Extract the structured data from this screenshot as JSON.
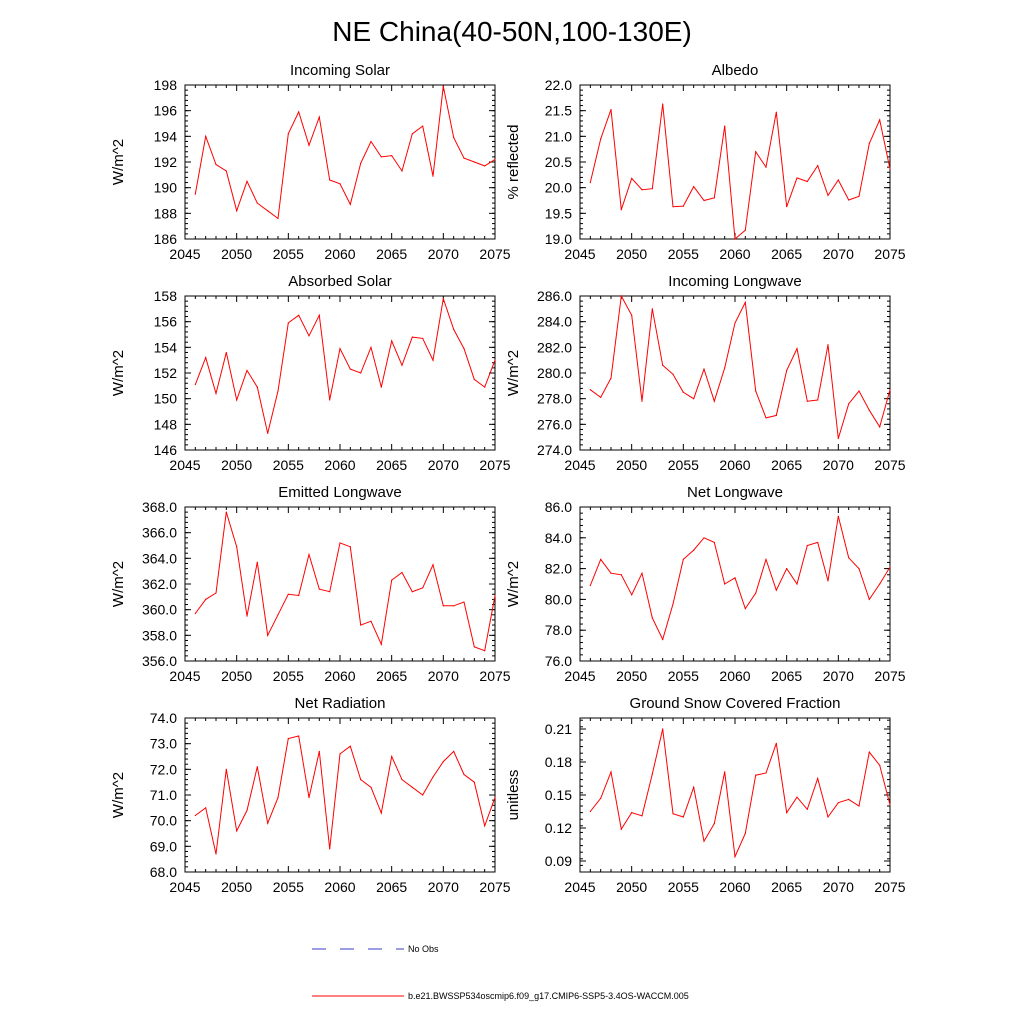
{
  "title": "NE China(40-50N,100-130E)",
  "legend": [
    {
      "label": "No Obs",
      "color": "#3b3bc8",
      "dash": true
    },
    {
      "label": "b.e21.BWSSP534oscmip6.f09_g17.CMIP6-SSP5-3.4OS-WACCM.005",
      "color": "#ff0000",
      "dash": false
    }
  ],
  "chart_data": [
    {
      "type": "line",
      "title": "Incoming Solar",
      "ylabel": "W/m^2",
      "xlim": [
        2045,
        2075
      ],
      "ylim": [
        186,
        198
      ],
      "xticks": [
        2045,
        2050,
        2055,
        2060,
        2065,
        2070,
        2075
      ],
      "yticks": [
        "186",
        "188",
        "190",
        "192",
        "194",
        "196",
        "198"
      ],
      "x": [
        2046,
        2047,
        2048,
        2049,
        2050,
        2051,
        2052,
        2053,
        2054,
        2055,
        2056,
        2057,
        2058,
        2059,
        2060,
        2061,
        2062,
        2063,
        2064,
        2065,
        2066,
        2067,
        2068,
        2069,
        2070,
        2071,
        2072,
        2073,
        2074,
        2075
      ],
      "series": [
        {
          "name": "b.e21.BWSSP534oscmip6.f09_g17.CMIP6-SSP5-3.4OS-WACCM.005",
          "color": "#ff0000",
          "values": [
            189.5,
            194.0,
            191.8,
            191.3,
            188.2,
            190.5,
            188.8,
            188.2,
            187.6,
            194.2,
            195.9,
            193.3,
            195.5,
            190.6,
            190.3,
            188.7,
            191.9,
            193.6,
            192.4,
            192.5,
            191.3,
            194.2,
            194.8,
            190.9,
            197.9,
            193.9,
            192.3,
            192.0,
            191.7,
            192.2
          ]
        }
      ]
    },
    {
      "type": "line",
      "title": "Albedo",
      "ylabel": "% reflected",
      "xlim": [
        2045,
        2075
      ],
      "ylim": [
        19.0,
        22.0
      ],
      "xticks": [
        2045,
        2050,
        2055,
        2060,
        2065,
        2070,
        2075
      ],
      "yticks": [
        "19.0",
        "19.5",
        "20.0",
        "20.5",
        "21.0",
        "21.5",
        "22.0"
      ],
      "x": [
        2046,
        2047,
        2048,
        2049,
        2050,
        2051,
        2052,
        2053,
        2054,
        2055,
        2056,
        2057,
        2058,
        2059,
        2060,
        2061,
        2062,
        2063,
        2064,
        2065,
        2066,
        2067,
        2068,
        2069,
        2070,
        2071,
        2072,
        2073,
        2074,
        2075
      ],
      "series": [
        {
          "name": "b.e21.BWSSP534oscmip6.f09_g17.CMIP6-SSP5-3.4OS-WACCM.005",
          "color": "#ff0000",
          "values": [
            20.1,
            20.95,
            21.52,
            19.57,
            20.18,
            19.96,
            19.98,
            21.63,
            19.63,
            19.64,
            20.02,
            19.75,
            19.8,
            21.2,
            19.0,
            19.17,
            20.7,
            20.4,
            21.47,
            19.63,
            20.19,
            20.12,
            20.43,
            19.85,
            20.15,
            19.76,
            19.83,
            20.86,
            21.32,
            20.36
          ]
        }
      ]
    },
    {
      "type": "line",
      "title": "Absorbed Solar",
      "ylabel": "W/m^2",
      "xlim": [
        2045,
        2075
      ],
      "ylim": [
        146,
        158
      ],
      "xticks": [
        2045,
        2050,
        2055,
        2060,
        2065,
        2070,
        2075
      ],
      "yticks": [
        "146",
        "148",
        "150",
        "152",
        "154",
        "156",
        "158"
      ],
      "x": [
        2046,
        2047,
        2048,
        2049,
        2050,
        2051,
        2052,
        2053,
        2054,
        2055,
        2056,
        2057,
        2058,
        2059,
        2060,
        2061,
        2062,
        2063,
        2064,
        2065,
        2066,
        2067,
        2068,
        2069,
        2070,
        2071,
        2072,
        2073,
        2074,
        2075
      ],
      "series": [
        {
          "name": "b.e21.BWSSP534oscmip6.f09_g17.CMIP6-SSP5-3.4OS-WACCM.005",
          "color": "#ff0000",
          "values": [
            151.1,
            153.2,
            150.4,
            153.6,
            149.9,
            152.2,
            150.9,
            147.3,
            150.6,
            155.9,
            156.5,
            154.9,
            156.5,
            149.9,
            153.9,
            152.3,
            152.0,
            154.0,
            150.9,
            154.5,
            152.6,
            154.8,
            154.7,
            153.0,
            157.8,
            155.4,
            153.9,
            151.5,
            150.9,
            153.0
          ]
        }
      ]
    },
    {
      "type": "line",
      "title": "Incoming Longwave",
      "ylabel": "W/m^2",
      "xlim": [
        2045,
        2075
      ],
      "ylim": [
        274.0,
        286.0
      ],
      "xticks": [
        2045,
        2050,
        2055,
        2060,
        2065,
        2070,
        2075
      ],
      "yticks": [
        "274.0",
        "276.0",
        "278.0",
        "280.0",
        "282.0",
        "284.0",
        "286.0"
      ],
      "x": [
        2046,
        2047,
        2048,
        2049,
        2050,
        2051,
        2052,
        2053,
        2054,
        2055,
        2056,
        2057,
        2058,
        2059,
        2060,
        2061,
        2062,
        2063,
        2064,
        2065,
        2066,
        2067,
        2068,
        2069,
        2070,
        2071,
        2072,
        2073,
        2074,
        2075
      ],
      "series": [
        {
          "name": "b.e21.BWSSP534oscmip6.f09_g17.CMIP6-SSP5-3.4OS-WACCM.005",
          "color": "#ff0000",
          "values": [
            278.7,
            278.1,
            279.6,
            286.0,
            284.5,
            277.8,
            285.0,
            280.6,
            279.9,
            278.5,
            278.0,
            280.3,
            277.8,
            280.4,
            283.9,
            285.5,
            278.6,
            276.5,
            276.7,
            280.2,
            281.9,
            277.8,
            277.9,
            282.2,
            274.9,
            277.6,
            278.6,
            277.1,
            275.8,
            278.7
          ]
        }
      ]
    },
    {
      "type": "line",
      "title": "Emitted Longwave",
      "ylabel": "W/m^2",
      "xlim": [
        2045,
        2075
      ],
      "ylim": [
        356.0,
        368.0
      ],
      "xticks": [
        2045,
        2050,
        2055,
        2060,
        2065,
        2070,
        2075
      ],
      "yticks": [
        "356.0",
        "358.0",
        "360.0",
        "362.0",
        "364.0",
        "366.0",
        "368.0"
      ],
      "x": [
        2046,
        2047,
        2048,
        2049,
        2050,
        2051,
        2052,
        2053,
        2054,
        2055,
        2056,
        2057,
        2058,
        2059,
        2060,
        2061,
        2062,
        2063,
        2064,
        2065,
        2066,
        2067,
        2068,
        2069,
        2070,
        2071,
        2072,
        2073,
        2074,
        2075
      ],
      "series": [
        {
          "name": "b.e21.BWSSP534oscmip6.f09_g17.CMIP6-SSP5-3.4OS-WACCM.005",
          "color": "#ff0000",
          "values": [
            359.7,
            360.8,
            361.3,
            367.6,
            364.9,
            359.5,
            363.7,
            358.0,
            359.6,
            361.2,
            361.1,
            364.3,
            361.6,
            361.4,
            365.2,
            364.9,
            358.8,
            359.1,
            357.3,
            362.3,
            362.9,
            361.4,
            361.7,
            363.5,
            360.3,
            360.3,
            360.6,
            357.1,
            356.8,
            361.1
          ]
        }
      ]
    },
    {
      "type": "line",
      "title": "Net Longwave",
      "ylabel": "W/m^2",
      "xlim": [
        2045,
        2075
      ],
      "ylim": [
        76.0,
        86.0
      ],
      "xticks": [
        2045,
        2050,
        2055,
        2060,
        2065,
        2070,
        2075
      ],
      "yticks": [
        "76.0",
        "78.0",
        "80.0",
        "82.0",
        "84.0",
        "86.0"
      ],
      "x": [
        2046,
        2047,
        2048,
        2049,
        2050,
        2051,
        2052,
        2053,
        2054,
        2055,
        2056,
        2057,
        2058,
        2059,
        2060,
        2061,
        2062,
        2063,
        2064,
        2065,
        2066,
        2067,
        2068,
        2069,
        2070,
        2071,
        2072,
        2073,
        2074,
        2075
      ],
      "series": [
        {
          "name": "b.e21.BWSSP534oscmip6.f09_g17.CMIP6-SSP5-3.4OS-WACCM.005",
          "color": "#ff0000",
          "values": [
            80.9,
            82.6,
            81.7,
            81.6,
            80.3,
            81.7,
            78.8,
            77.4,
            79.7,
            82.6,
            83.2,
            84.0,
            83.7,
            81.0,
            81.4,
            79.4,
            80.4,
            82.6,
            80.6,
            82.0,
            81.0,
            83.5,
            83.7,
            81.2,
            85.4,
            82.7,
            82.0,
            80.0,
            81.0,
            82.1
          ]
        }
      ]
    },
    {
      "type": "line",
      "title": "Net Radiation",
      "ylabel": "W/m^2",
      "xlim": [
        2045,
        2075
      ],
      "ylim": [
        68.0,
        74.0
      ],
      "xticks": [
        2045,
        2050,
        2055,
        2060,
        2065,
        2070,
        2075
      ],
      "yticks": [
        "68.0",
        "69.0",
        "70.0",
        "71.0",
        "72.0",
        "73.0",
        "74.0"
      ],
      "x": [
        2046,
        2047,
        2048,
        2049,
        2050,
        2051,
        2052,
        2053,
        2054,
        2055,
        2056,
        2057,
        2058,
        2059,
        2060,
        2061,
        2062,
        2063,
        2064,
        2065,
        2066,
        2067,
        2068,
        2069,
        2070,
        2071,
        2072,
        2073,
        2074,
        2075
      ],
      "series": [
        {
          "name": "b.e21.BWSSP534oscmip6.f09_g17.CMIP6-SSP5-3.4OS-WACCM.005",
          "color": "#ff0000",
          "values": [
            70.2,
            70.5,
            68.7,
            72.0,
            69.6,
            70.4,
            72.1,
            69.9,
            70.9,
            73.2,
            73.3,
            70.9,
            72.7,
            68.9,
            72.6,
            72.9,
            71.6,
            71.3,
            70.3,
            72.5,
            71.6,
            71.3,
            71.0,
            71.7,
            72.3,
            72.7,
            71.8,
            71.5,
            69.8,
            70.9
          ]
        }
      ]
    },
    {
      "type": "line",
      "title": "Ground Snow Covered Fraction",
      "ylabel": "unitless",
      "xlim": [
        2045,
        2075
      ],
      "ylim": [
        0.08,
        0.22
      ],
      "xticks": [
        2045,
        2050,
        2055,
        2060,
        2065,
        2070,
        2075
      ],
      "yticks": [
        "0.09",
        "0.12",
        "0.15",
        "0.18",
        "0.21"
      ],
      "x": [
        2046,
        2047,
        2048,
        2049,
        2050,
        2051,
        2052,
        2053,
        2054,
        2055,
        2056,
        2057,
        2058,
        2059,
        2060,
        2061,
        2062,
        2063,
        2064,
        2065,
        2066,
        2067,
        2068,
        2069,
        2070,
        2071,
        2072,
        2073,
        2074,
        2075
      ],
      "series": [
        {
          "name": "b.e21.BWSSP534oscmip6.f09_g17.CMIP6-SSP5-3.4OS-WACCM.005",
          "color": "#ff0000",
          "values": [
            0.135,
            0.147,
            0.171,
            0.119,
            0.134,
            0.131,
            0.169,
            0.21,
            0.133,
            0.13,
            0.157,
            0.108,
            0.124,
            0.171,
            0.094,
            0.115,
            0.168,
            0.17,
            0.197,
            0.134,
            0.148,
            0.137,
            0.165,
            0.13,
            0.143,
            0.146,
            0.14,
            0.189,
            0.177,
            0.141
          ]
        }
      ]
    }
  ]
}
